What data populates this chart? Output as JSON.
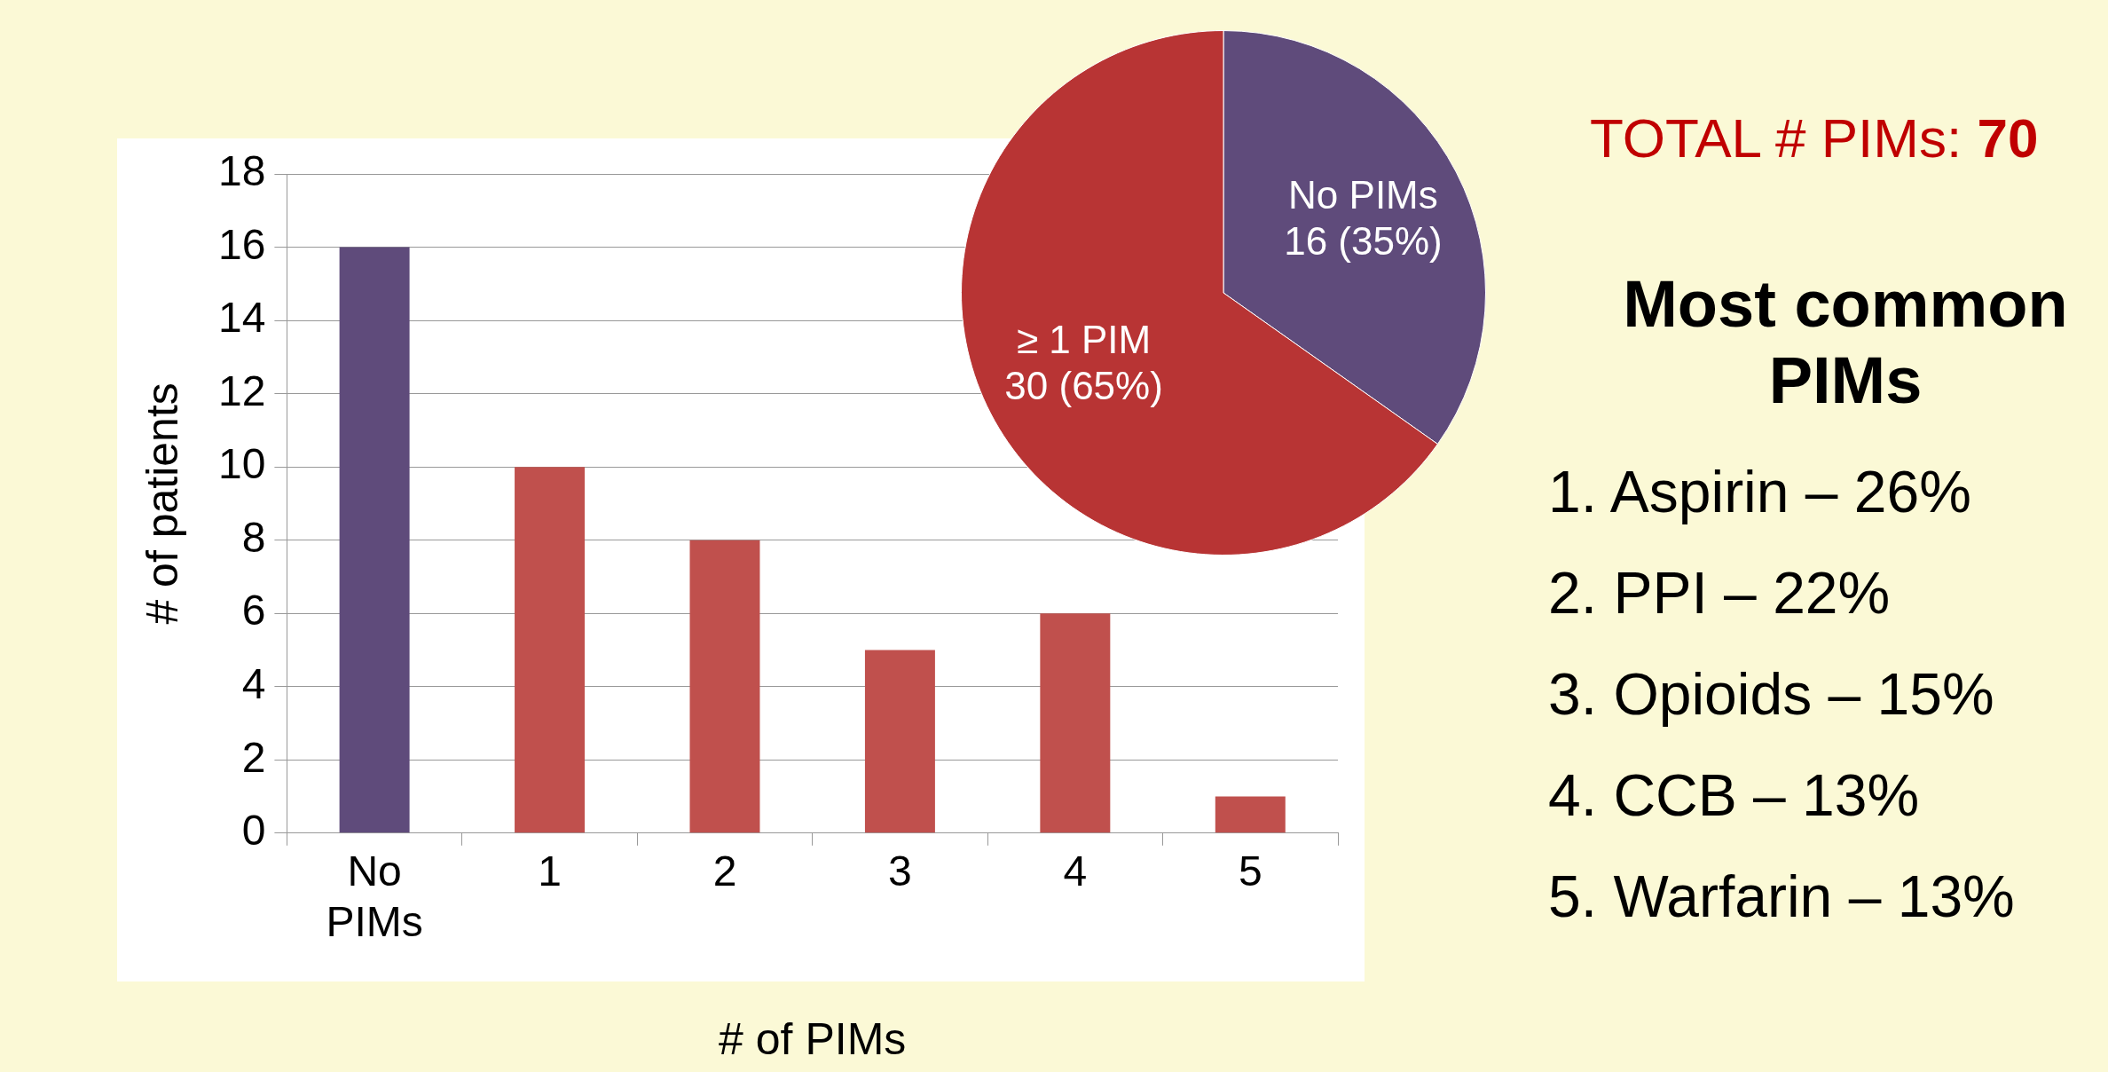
{
  "chart_data": [
    {
      "type": "bar",
      "categories": [
        "No PIMs",
        "1",
        "2",
        "3",
        "4",
        "5"
      ],
      "values": [
        16,
        10,
        8,
        5,
        6,
        1
      ],
      "colors": [
        "#5f4b7b",
        "#c0504d",
        "#c0504d",
        "#c0504d",
        "#c0504d",
        "#c0504d"
      ],
      "ylim": [
        0,
        18
      ],
      "yticks": [
        0,
        2,
        4,
        6,
        8,
        10,
        12,
        14,
        16,
        18
      ],
      "grid": "y",
      "xlabel": "# of PIMs",
      "ylabel": "# of patients"
    },
    {
      "type": "pie",
      "categories": [
        "No PIMs",
        "≥ 1 PIM"
      ],
      "values": [
        16,
        30
      ],
      "colors": [
        "#5f4b7b",
        "#b83434"
      ],
      "value_labels": [
        "16 (35%)",
        "30 (65%)"
      ]
    },
    {
      "type": "other",
      "title": "Most common PIMs",
      "annotations": [
        "TOTAL # PIMs: 70",
        "1. Aspirin – 26%",
        "2. PPI – 22%",
        "3. Opioids – 15%",
        "4. CCB – 13%",
        "5. Warfarin – 13%"
      ]
    }
  ]
}
